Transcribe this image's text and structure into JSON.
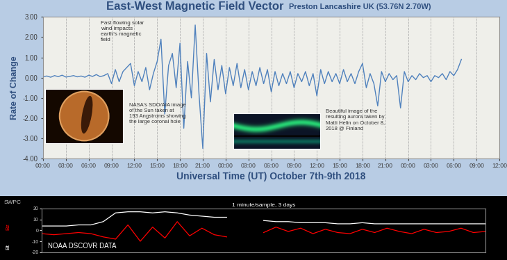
{
  "chart_data": [
    {
      "type": "line",
      "title": "East-West Magnetic Field Vector",
      "subtitle": "Preston Lancashire UK (53.76N 2.70W)",
      "xlabel": "Universal Time (UT) October 7th-9th 2018",
      "ylabel": "Rate of Change",
      "annotations": [
        "Fast flowing solar wind impacts earth's magnetic field",
        "NASA's SDO/AIA image of the Sun taken at 193 Angstroms showing the large coronal hole",
        "Beautiful image of the resulting aurora taken by Matti Helin on October 8, 2018 @ Finland"
      ],
      "x": [
        0,
        0.5,
        1,
        1.5,
        2,
        2.5,
        3,
        3.5,
        4,
        4.5,
        5,
        5.5,
        6,
        6.5,
        7,
        7.5,
        8,
        8.5,
        9,
        9.5,
        10,
        10.5,
        11,
        11.5,
        12,
        12.5,
        13,
        13.5,
        14,
        14.5,
        15,
        15.5,
        16,
        16.5,
        17,
        17.5,
        18,
        18.5,
        19,
        19.5,
        20,
        20.5,
        21,
        21.5,
        22,
        22.5,
        23,
        23.5,
        24,
        24.5,
        25,
        25.5,
        26,
        26.5,
        27,
        27.5,
        28,
        28.5,
        29,
        29.5,
        30,
        30.5,
        31,
        31.5,
        32,
        32.5,
        33,
        33.5,
        34,
        34.5,
        35,
        35.5,
        36,
        36.5,
        37,
        37.5,
        38,
        38.5,
        39,
        39.5,
        40,
        40.5,
        41,
        41.5,
        42,
        42.5,
        43,
        43.5,
        44,
        44.5,
        45,
        45.5,
        46,
        46.5,
        47,
        47.5,
        48,
        48.5,
        49,
        49.5,
        50,
        50.5,
        51,
        51.5,
        52,
        52.5,
        53,
        53.5,
        54,
        54.5,
        55
      ],
      "series": [
        {
          "name": "East-West",
          "color": "#4f81bd",
          "values": [
            0.05,
            0.08,
            0.02,
            0.1,
            0.05,
            0.12,
            0.03,
            0.06,
            0.1,
            0.04,
            0.08,
            0.02,
            0.12,
            0.06,
            0.15,
            0.05,
            0.1,
            0.2,
            -0.3,
            0.4,
            -0.2,
            0.3,
            0.5,
            0.7,
            -0.4,
            0.3,
            -0.2,
            0.5,
            -0.6,
            0.2,
            0.8,
            1.9,
            -1.8,
            0.6,
            1.2,
            -0.5,
            1.7,
            -2.5,
            0.8,
            -1.0,
            2.6,
            -0.8,
            -3.5,
            1.2,
            -1.2,
            0.9,
            -0.6,
            0.6,
            -0.8,
            0.5,
            -0.4,
            0.7,
            -0.5,
            0.4,
            -0.6,
            0.3,
            -0.4,
            0.5,
            -0.3,
            0.4,
            -0.7,
            0.3,
            -0.4,
            0.2,
            -0.3,
            0.3,
            -0.5,
            0.2,
            -0.2,
            0.3,
            -0.4,
            0.2,
            -0.9,
            0.4,
            -0.3,
            0.3,
            -0.2,
            0.2,
            -0.3,
            0.4,
            -0.2,
            0.2,
            -0.3,
            0.3,
            0.7,
            -0.5,
            0.2,
            -0.3,
            -1.4,
            0.3,
            -0.2,
            0.2,
            -0.1,
            0.1,
            -1.5,
            0.3,
            -0.2,
            0.1,
            -0.1,
            0.2,
            0.0,
            0.1,
            -0.2,
            0.1,
            0.0,
            0.2,
            -0.1,
            0.3,
            0.1,
            0.4,
            0.9
          ]
        }
      ],
      "xlim": [
        0,
        60
      ],
      "xticks": [
        {
          "value": 0,
          "label": "00:00"
        },
        {
          "value": 3,
          "label": "03:00"
        },
        {
          "value": 6,
          "label": "06:00"
        },
        {
          "value": 9,
          "label": "09:00"
        },
        {
          "value": 12,
          "label": "12:00"
        },
        {
          "value": 15,
          "label": "15:00"
        },
        {
          "value": 18,
          "label": "18:00"
        },
        {
          "value": 21,
          "label": "21:00"
        },
        {
          "value": 24,
          "label": "00:00"
        },
        {
          "value": 27,
          "label": "03:00"
        },
        {
          "value": 30,
          "label": "06:00"
        },
        {
          "value": 33,
          "label": "09:00"
        },
        {
          "value": 36,
          "label": "12:00"
        },
        {
          "value": 39,
          "label": "15:00"
        },
        {
          "value": 42,
          "label": "18:00"
        },
        {
          "value": 45,
          "label": "21:00"
        },
        {
          "value": 48,
          "label": "00:00"
        },
        {
          "value": 51,
          "label": "03:00"
        },
        {
          "value": 54,
          "label": "06:00"
        },
        {
          "value": 57,
          "label": "09:00"
        },
        {
          "value": 60,
          "label": "12:00"
        }
      ],
      "ylim": [
        -4,
        3
      ],
      "yticks": [
        {
          "value": -4,
          "label": "-4.00"
        },
        {
          "value": -3,
          "label": "-3.00"
        },
        {
          "value": -2,
          "label": "-2.00"
        },
        {
          "value": -1,
          "label": "-1.00"
        },
        {
          "value": 0,
          "label": "0.00"
        },
        {
          "value": 1,
          "label": "1.00"
        },
        {
          "value": 2,
          "label": "2.00"
        },
        {
          "value": 3,
          "label": "3.00"
        }
      ],
      "grid": true
    },
    {
      "type": "line",
      "title": "1 minute/sample, 3 days",
      "annotations": [
        "SWPC",
        "NOAA DSCOVR DATA"
      ],
      "x": [
        0,
        2,
        4,
        6,
        8,
        10,
        12,
        14,
        16,
        18,
        20,
        22,
        24,
        26,
        28,
        30,
        32,
        34,
        36,
        38,
        40,
        42,
        44,
        46,
        48,
        50,
        52,
        54,
        56,
        58,
        60,
        62,
        64,
        66,
        68,
        70,
        72
      ],
      "series": [
        {
          "name": "Bt",
          "color": "#ffffff",
          "values": [
            4,
            4,
            4,
            5,
            5,
            8,
            16,
            17,
            17,
            16,
            17,
            16,
            14,
            13,
            12,
            12,
            null,
            null,
            9,
            8,
            8,
            7,
            7,
            7,
            6,
            6,
            7,
            6,
            6,
            6,
            6,
            6,
            6,
            6,
            6,
            6,
            6
          ]
        },
        {
          "name": "Bz",
          "color": "#ff0000",
          "values": [
            -3,
            -4,
            -3,
            -2,
            -3,
            -6,
            -8,
            5,
            -10,
            3,
            -7,
            8,
            -5,
            2,
            -4,
            -6,
            null,
            null,
            -2,
            3,
            -1,
            2,
            -3,
            1,
            -2,
            -3,
            1,
            -2,
            2,
            -1,
            -3,
            1,
            -2,
            -1,
            2,
            -2,
            -1
          ]
        }
      ],
      "xlim": [
        0,
        72
      ],
      "ylim": [
        -20,
        20
      ],
      "yticks": [
        -20,
        -10,
        0,
        10,
        20
      ],
      "tick_labels": "y"
    }
  ]
}
